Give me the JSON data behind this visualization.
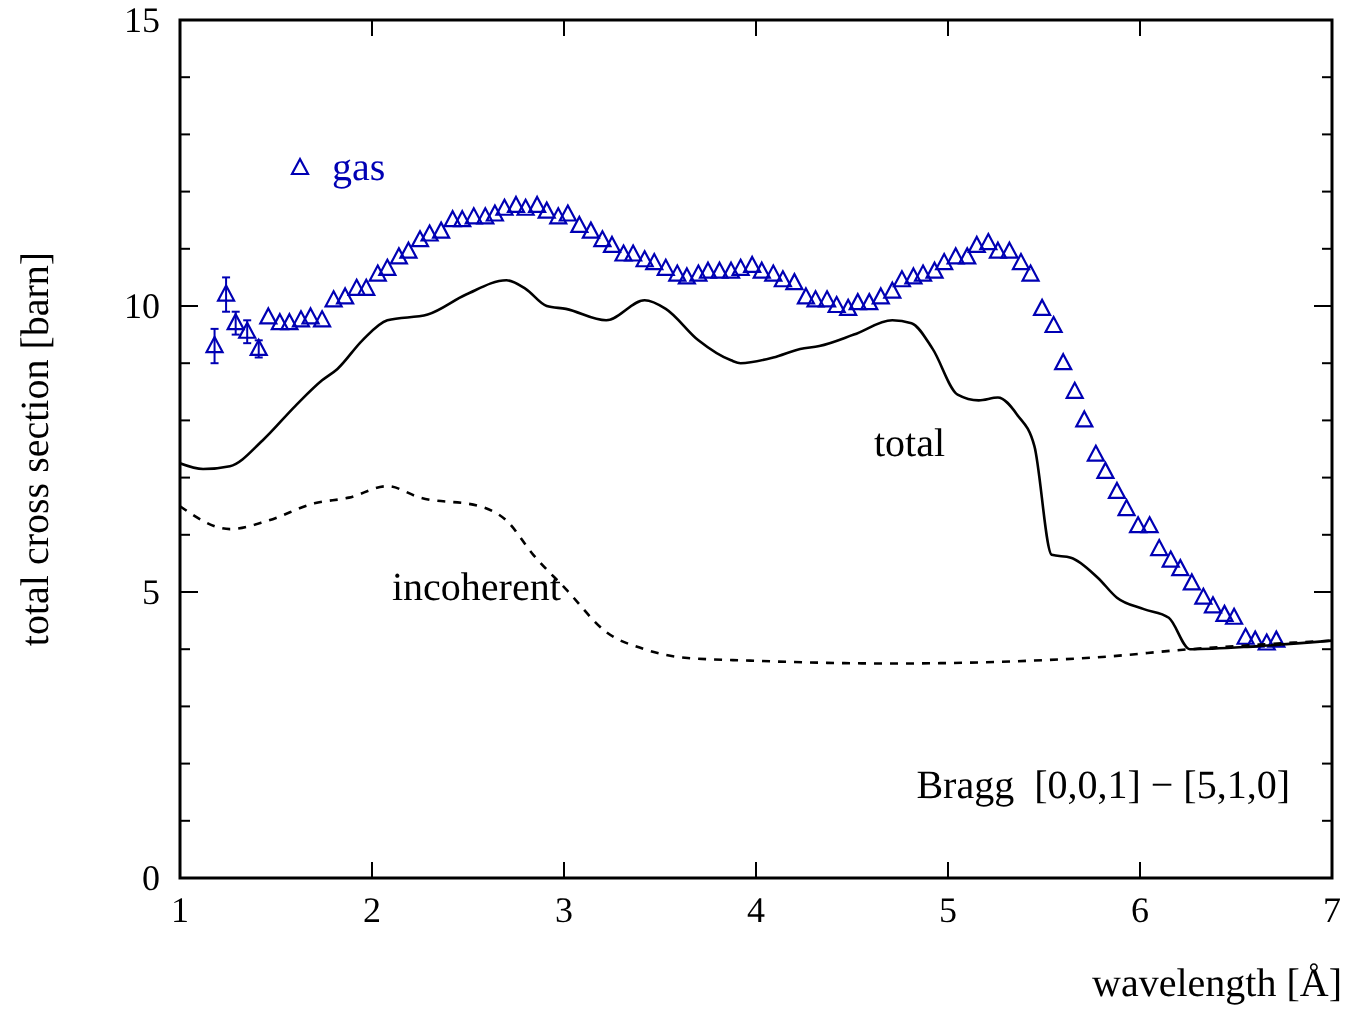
{
  "chart_data": {
    "type": "line",
    "xlabel": "wavelength [Å]",
    "ylabel": "total cross section [barn]",
    "xlim": [
      1,
      7
    ],
    "ylim": [
      0,
      15
    ],
    "xticks": [
      1,
      2,
      3,
      4,
      5,
      6,
      7
    ],
    "yticks": [
      0,
      {
        "value": 1,
        "label": null
      },
      {
        "value": 2,
        "label": null
      },
      {
        "value": 3,
        "label": null
      },
      {
        "value": 4,
        "label": null
      },
      5,
      {
        "value": 6,
        "label": null
      },
      {
        "value": 7,
        "label": null
      },
      {
        "value": 8,
        "label": null
      },
      {
        "value": 9,
        "label": null
      },
      10,
      {
        "value": 11,
        "label": null
      },
      {
        "value": 12,
        "label": null
      },
      {
        "value": 13,
        "label": null
      },
      {
        "value": 14,
        "label": null
      },
      15
    ],
    "grid": false,
    "legend": "top left",
    "annotations": [
      "Bragg  [0,0,1] − [5,1,0]"
    ],
    "series": [
      {
        "name": "gas",
        "type": "scatter",
        "marker": "triangle",
        "color": "#0000b4",
        "x": [
          1.18,
          1.24,
          1.29,
          1.35,
          1.41,
          1.46,
          1.52,
          1.57,
          1.63,
          1.68,
          1.74,
          1.8,
          1.86,
          1.92,
          1.97,
          2.03,
          2.08,
          2.14,
          2.19,
          2.25,
          2.3,
          2.36,
          2.42,
          2.47,
          2.53,
          2.59,
          2.64,
          2.69,
          2.75,
          2.8,
          2.86,
          2.91,
          2.97,
          3.02,
          3.08,
          3.14,
          3.2,
          3.25,
          3.31,
          3.36,
          3.42,
          3.47,
          3.53,
          3.59,
          3.64,
          3.7,
          3.75,
          3.81,
          3.87,
          3.92,
          3.98,
          4.03,
          4.09,
          4.14,
          4.2,
          4.26,
          4.31,
          4.37,
          4.42,
          4.48,
          4.53,
          4.59,
          4.65,
          4.71,
          4.76,
          4.82,
          4.87,
          4.93,
          4.98,
          5.04,
          5.1,
          5.15,
          5.21,
          5.26,
          5.32,
          5.38,
          5.43,
          5.49,
          5.55,
          5.6,
          5.66,
          5.71,
          5.77,
          5.82,
          5.88,
          5.93,
          5.99,
          6.05,
          6.1,
          6.16,
          6.21,
          6.27,
          6.33,
          6.38,
          6.44,
          6.49,
          6.55,
          6.6,
          6.66,
          6.71
        ],
        "values": [
          9.3,
          10.2,
          9.7,
          9.55,
          9.25,
          9.8,
          9.7,
          9.7,
          9.75,
          9.8,
          9.75,
          10.1,
          10.15,
          10.3,
          10.3,
          10.55,
          10.65,
          10.85,
          10.95,
          11.15,
          11.25,
          11.3,
          11.5,
          11.5,
          11.55,
          11.55,
          11.6,
          11.7,
          11.75,
          11.7,
          11.75,
          11.65,
          11.55,
          11.6,
          11.4,
          11.3,
          11.15,
          11.05,
          10.9,
          10.9,
          10.8,
          10.75,
          10.65,
          10.55,
          10.5,
          10.55,
          10.6,
          10.6,
          10.6,
          10.65,
          10.7,
          10.6,
          10.55,
          10.45,
          10.4,
          10.15,
          10.1,
          10.1,
          10,
          9.95,
          10.05,
          10.05,
          10.15,
          10.25,
          10.45,
          10.5,
          10.55,
          10.6,
          10.75,
          10.85,
          10.85,
          11.05,
          11.1,
          10.95,
          10.95,
          10.75,
          10.55,
          9.95,
          9.65,
          9,
          8.5,
          8,
          7.4,
          7.1,
          6.75,
          6.45,
          6.15,
          6.15,
          5.75,
          5.55,
          5.4,
          5.15,
          4.9,
          4.75,
          4.6,
          4.55,
          4.2,
          4.15,
          4.1,
          4.15
        ],
        "errors": [
          0.3,
          0.3,
          0.2,
          0.2,
          0.15,
          null,
          null,
          null,
          null,
          null,
          null,
          null,
          null,
          null,
          null,
          null,
          null,
          null,
          null,
          null,
          null,
          null,
          null,
          null,
          null,
          null,
          null,
          null,
          null,
          null,
          null,
          null,
          null,
          null,
          null,
          null,
          null,
          null,
          null,
          null,
          null,
          null,
          null,
          null,
          null,
          null,
          null,
          null,
          null,
          null,
          null,
          null,
          null,
          null,
          null,
          null,
          null,
          null,
          null,
          null,
          null,
          null,
          null,
          null,
          null,
          null,
          null,
          null,
          null,
          null,
          null,
          null,
          null,
          null,
          null,
          null,
          null,
          null,
          null,
          null,
          null,
          null,
          null,
          null,
          null,
          null,
          null,
          null,
          null,
          null,
          null,
          null,
          null,
          null,
          null,
          null,
          null,
          null,
          null,
          null
        ]
      },
      {
        "name": "total",
        "line_style": "solid",
        "color": "#000000",
        "x": [
          1,
          1.12,
          1.26,
          1.43,
          1.6,
          1.74,
          1.82,
          1.95,
          2.08,
          2.29,
          2.49,
          2.7,
          2.8,
          2.91,
          3.01,
          3.22,
          3.42,
          3.53,
          3.7,
          3.87,
          3.92,
          4.09,
          4.23,
          4.33,
          4.51,
          4.71,
          4.81,
          4.92,
          5.05,
          5.16,
          5.26,
          5.36,
          5.45,
          5.54,
          5.64,
          5.78,
          5.88,
          6.02,
          6.15,
          6.26,
          6.6,
          7
        ],
        "values": [
          7.25,
          7.15,
          7.2,
          7.65,
          8.25,
          8.7,
          8.9,
          9.4,
          9.75,
          9.85,
          10.2,
          10.45,
          10.3,
          10,
          9.95,
          9.75,
          10.1,
          9.95,
          9.4,
          9.05,
          9,
          9.1,
          9.25,
          9.3,
          9.5,
          9.75,
          9.7,
          9.25,
          8.45,
          8.35,
          8.4,
          8.1,
          7.55,
          5.65,
          5.6,
          5.25,
          4.9,
          4.7,
          4.55,
          4,
          4.05,
          4.15
        ]
      },
      {
        "name": "incoherent",
        "line_style": "dashed",
        "color": "#000000",
        "x": [
          1,
          1.26,
          1.46,
          1.7,
          1.88,
          2.08,
          2.25,
          2.56,
          2.7,
          2.84,
          3.01,
          3.22,
          3.42,
          3.63,
          3.97,
          4.71,
          5.74,
          6.26,
          7
        ],
        "values": [
          6.5,
          6.1,
          6.25,
          6.55,
          6.65,
          6.85,
          6.65,
          6.5,
          6.25,
          5.65,
          5.05,
          4.3,
          4,
          3.85,
          3.8,
          3.75,
          3.85,
          4,
          4.15
        ]
      }
    ]
  }
}
